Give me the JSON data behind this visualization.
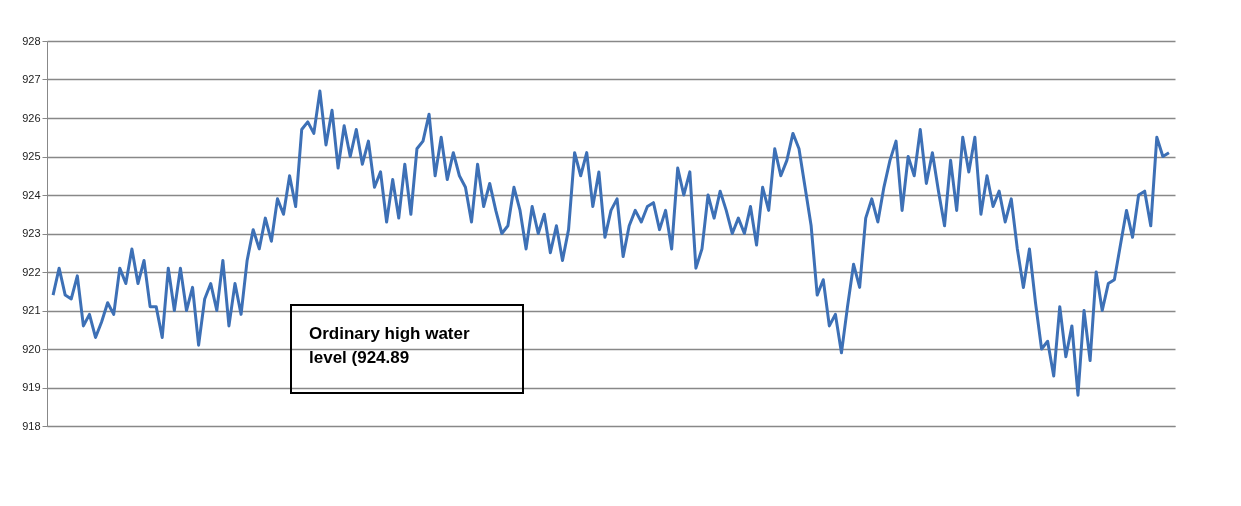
{
  "chart_data": {
    "type": "line",
    "annotations": [
      "Ordinary high water level (924.89"
    ],
    "categories": [
      null,
      null,
      null,
      null,
      null,
      null,
      null,
      null,
      null,
      null,
      null,
      null,
      null,
      null,
      null,
      null,
      null,
      null,
      null,
      null,
      null,
      null,
      null,
      null,
      null,
      null,
      null,
      null,
      null,
      null,
      null,
      null,
      null,
      null,
      null,
      null,
      null,
      null,
      null,
      null,
      null,
      null,
      null,
      null,
      null,
      null,
      null,
      null,
      null,
      null,
      null,
      null,
      null,
      null,
      null,
      null,
      null,
      null,
      null,
      null,
      null,
      null,
      null,
      null,
      null,
      null,
      null,
      null,
      null,
      null,
      null,
      null,
      null,
      null,
      null,
      null,
      null,
      null,
      null,
      null,
      null,
      null,
      null,
      null,
      null,
      null,
      null,
      null,
      null,
      null,
      null,
      null,
      null,
      null,
      null,
      null,
      null,
      null,
      null,
      null,
      null,
      null,
      null,
      null,
      null,
      null,
      null,
      null,
      null,
      null,
      null,
      null,
      null,
      null,
      null,
      null,
      null,
      null,
      null,
      null,
      null,
      null,
      null,
      null,
      null,
      null,
      null,
      null,
      null,
      null,
      null,
      null,
      null,
      null,
      null,
      null,
      null,
      null,
      null,
      null,
      null,
      null,
      null,
      null,
      null,
      null,
      null,
      null,
      null,
      null,
      null,
      null,
      null,
      null,
      null,
      null,
      null,
      null,
      null,
      null,
      null,
      null,
      null,
      null,
      null,
      null,
      null,
      null,
      null,
      null,
      null,
      null,
      null,
      null,
      null,
      null,
      null,
      null,
      null,
      null,
      null,
      null,
      null,
      null,
      null
    ],
    "series": [
      {
        "color": "#3d70b6",
        "values": [
          921.4,
          922.1,
          921.4,
          921.3,
          921.9,
          920.6,
          920.9,
          920.3,
          920.7,
          921.2,
          920.9,
          922.1,
          921.7,
          922.6,
          921.7,
          922.3,
          921.1,
          921.1,
          920.3,
          922.1,
          921.0,
          922.1,
          921.0,
          921.6,
          920.1,
          921.3,
          921.7,
          921.0,
          922.3,
          920.6,
          921.7,
          920.9,
          922.3,
          923.1,
          922.6,
          923.4,
          922.8,
          923.9,
          923.5,
          924.5,
          923.7,
          925.7,
          925.9,
          925.6,
          926.7,
          925.3,
          926.2,
          924.7,
          925.8,
          925.0,
          925.7,
          924.8,
          925.4,
          924.2,
          924.6,
          923.3,
          924.4,
          923.4,
          924.8,
          923.5,
          925.2,
          925.4,
          926.1,
          924.5,
          925.5,
          924.4,
          925.1,
          924.5,
          924.2,
          923.3,
          924.8,
          923.7,
          924.3,
          923.6,
          923.0,
          923.2,
          924.2,
          923.6,
          922.6,
          923.7,
          923.0,
          923.5,
          922.5,
          923.2,
          922.3,
          923.1,
          925.1,
          924.5,
          925.1,
          923.7,
          924.6,
          922.9,
          923.6,
          923.9,
          922.4,
          923.2,
          923.6,
          923.3,
          923.7,
          923.8,
          923.1,
          923.6,
          922.6,
          924.7,
          924.0,
          924.6,
          922.1,
          922.6,
          924.0,
          923.4,
          924.1,
          923.6,
          923.0,
          923.4,
          923.0,
          923.7,
          922.7,
          924.2,
          923.6,
          925.2,
          924.5,
          924.9,
          925.6,
          925.2,
          924.2,
          923.2,
          921.4,
          921.8,
          920.6,
          920.9,
          919.9,
          921.1,
          922.2,
          921.6,
          923.4,
          923.9,
          923.3,
          924.2,
          924.9,
          925.4,
          923.6,
          925.0,
          924.5,
          925.7,
          924.3,
          925.1,
          924.1,
          923.2,
          924.9,
          923.6,
          925.5,
          924.6,
          925.5,
          923.5,
          924.5,
          923.7,
          924.1,
          923.3,
          923.9,
          922.6,
          921.6,
          922.6,
          921.2,
          920.0,
          920.2,
          919.3,
          921.1,
          919.8,
          920.6,
          918.8,
          921.0,
          919.7,
          922.0,
          921.0,
          921.7,
          921.8,
          922.7,
          923.6,
          922.9,
          924.0,
          924.1,
          923.2,
          925.5,
          925.0,
          925.1
        ]
      }
    ],
    "ylim": [
      918,
      928
    ],
    "yticks": [
      918,
      919,
      920,
      921,
      922,
      923,
      924,
      925,
      926,
      927,
      928
    ],
    "grid": "y",
    "tick_labels": "y",
    "line_style": "solid",
    "marker": "none"
  }
}
